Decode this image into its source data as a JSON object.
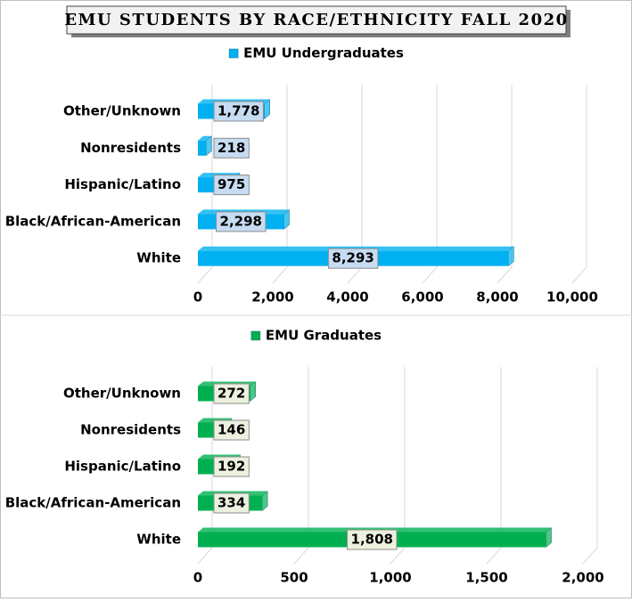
{
  "title": "EMU STUDENTS BY RACE/ETHNICITY FALL 2020",
  "chart_data": [
    {
      "type": "bar",
      "orientation": "horizontal",
      "categories": [
        "Other/Unknown",
        "Nonresidents",
        "Hispanic/Latino",
        "Black/African-American",
        "White"
      ],
      "series": [
        {
          "name": "EMU Undergraduates",
          "color": "#00b0f0",
          "values": [
            1778,
            218,
            975,
            2298,
            8293
          ],
          "value_labels": [
            "1,778",
            "218",
            "975",
            "2,298",
            "8,293"
          ]
        }
      ],
      "xlim": [
        0,
        10000
      ],
      "xticks": [
        0,
        {
          "value": 2000,
          "label": "2,000"
        },
        {
          "value": 4000,
          "label": "4,000"
        },
        {
          "value": 6000,
          "label": "6,000"
        },
        {
          "value": 8000,
          "label": "8,000"
        },
        {
          "value": 10000,
          "label": "10,000"
        }
      ],
      "grid": true,
      "legend": "top"
    },
    {
      "type": "bar",
      "orientation": "horizontal",
      "categories": [
        "Other/Unknown",
        "Nonresidents",
        "Hispanic/Latino",
        "Black/African-American",
        "White"
      ],
      "series": [
        {
          "name": "EMU Graduates",
          "color": "#00b050",
          "values": [
            272,
            146,
            192,
            334,
            1808
          ],
          "value_labels": [
            "272",
            "146",
            "192",
            "334",
            "1,808"
          ]
        }
      ],
      "xlim": [
        0,
        2000
      ],
      "xticks": [
        0,
        500,
        {
          "value": 1000,
          "label": "1,000"
        },
        {
          "value": 1500,
          "label": "1,500"
        },
        {
          "value": 2000,
          "label": "2,000"
        }
      ],
      "grid": true,
      "legend": "top"
    }
  ]
}
